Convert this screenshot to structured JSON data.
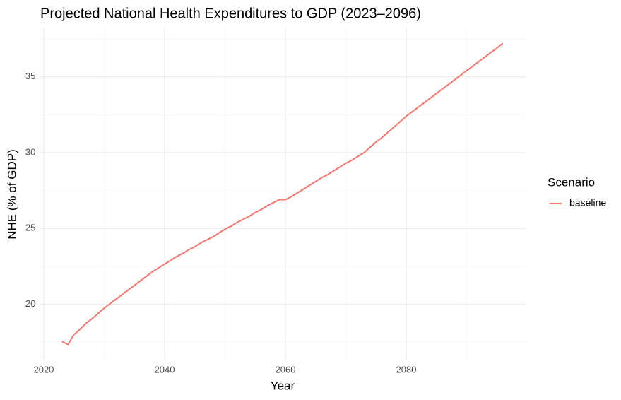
{
  "chart_data": {
    "type": "line",
    "title": "Projected National Health Expenditures to GDP (2023–2096)",
    "x_label": "Year",
    "y_label": "NHE (% of GDP)",
    "legend_title": "Scenario",
    "legend_position": "right",
    "x": [
      2023,
      2024,
      2025,
      2026,
      2027,
      2028,
      2029,
      2030,
      2031,
      2032,
      2033,
      2034,
      2035,
      2036,
      2037,
      2038,
      2039,
      2040,
      2041,
      2042,
      2043,
      2044,
      2045,
      2046,
      2047,
      2048,
      2049,
      2050,
      2051,
      2052,
      2053,
      2054,
      2055,
      2056,
      2057,
      2058,
      2059,
      2060,
      2061,
      2062,
      2063,
      2064,
      2065,
      2066,
      2067,
      2068,
      2069,
      2070,
      2071,
      2072,
      2073,
      2074,
      2075,
      2076,
      2077,
      2078,
      2079,
      2080,
      2081,
      2082,
      2083,
      2084,
      2085,
      2086,
      2087,
      2088,
      2089,
      2090,
      2091,
      2092,
      2093,
      2094,
      2095,
      2096
    ],
    "series": [
      {
        "name": "baseline",
        "color": "#F8766D",
        "values": [
          17.55,
          17.35,
          18.0,
          18.35,
          18.75,
          19.05,
          19.4,
          19.75,
          20.05,
          20.35,
          20.65,
          20.95,
          21.25,
          21.55,
          21.85,
          22.15,
          22.4,
          22.65,
          22.9,
          23.15,
          23.35,
          23.6,
          23.8,
          24.05,
          24.25,
          24.45,
          24.7,
          24.95,
          25.15,
          25.4,
          25.6,
          25.8,
          26.05,
          26.25,
          26.5,
          26.7,
          26.9,
          26.9,
          27.1,
          27.35,
          27.6,
          27.85,
          28.1,
          28.35,
          28.55,
          28.8,
          29.05,
          29.3,
          29.5,
          29.75,
          30.0,
          30.35,
          30.7,
          31.0,
          31.35,
          31.7,
          32.05,
          32.4,
          32.7,
          33.0,
          33.3,
          33.6,
          33.9,
          34.2,
          34.5,
          34.8,
          35.1,
          35.4,
          35.7,
          36.0,
          36.3,
          36.6,
          36.9,
          37.2
        ]
      }
    ],
    "xlim": [
      2019.35,
      2099.65
    ],
    "xticks": [
      2020,
      2040,
      2060,
      2080
    ],
    "xminorticks": [
      2030,
      2050,
      2070,
      2090
    ],
    "ylim": [
      16.3,
      38.2
    ],
    "yticks": [
      20,
      25,
      30,
      35
    ],
    "yminorticks": [
      17.5,
      22.5,
      27.5,
      32.5,
      37.5
    ],
    "grid": true
  }
}
